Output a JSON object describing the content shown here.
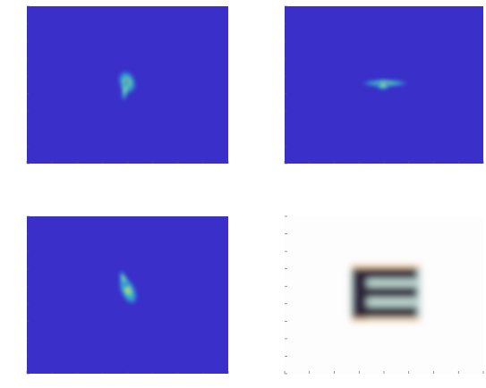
{
  "chart_data": [
    {
      "type": "heatmap"
    },
    {
      "type": "heatmap"
    },
    {
      "type": "heatmap"
    },
    {
      "type": "image"
    }
  ]
}
